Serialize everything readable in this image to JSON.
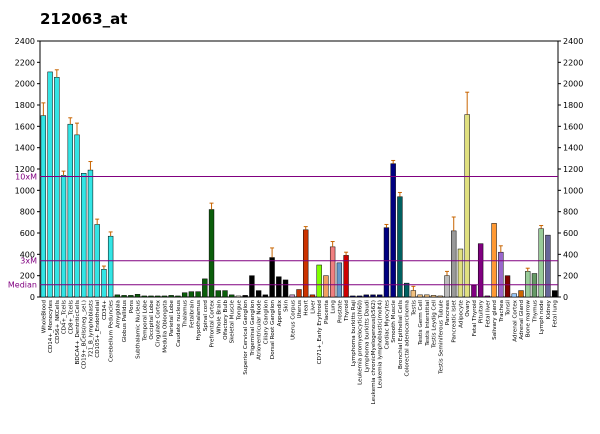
{
  "chart_data": {
    "type": "bar",
    "title": "212063_at",
    "xlabel": "",
    "ylabel": "",
    "left_axis": {
      "ticks": [
        {
          "label": "0",
          "v": 0
        },
        {
          "label": "200",
          "v": 200
        },
        {
          "label": "400",
          "v": 400
        },
        {
          "label": "600",
          "v": 600
        },
        {
          "label": "800",
          "v": 800
        },
        {
          "label": "1000",
          "v": 1000
        },
        {
          "label": "1200",
          "v": 1200
        },
        {
          "label": "1400",
          "v": 1400
        },
        {
          "label": "1600",
          "v": 1600
        },
        {
          "label": "1800",
          "v": 1800
        },
        {
          "label": "2000",
          "v": 2000
        },
        {
          "label": "2200",
          "v": 2200
        },
        {
          "label": "2400",
          "v": 2400
        }
      ]
    },
    "right_axis": {
      "ticks": [
        {
          "label": "0",
          "v": 0
        },
        {
          "label": "200",
          "v": 200
        },
        {
          "label": "400",
          "v": 400
        },
        {
          "label": "600",
          "v": 600
        },
        {
          "label": "800",
          "v": 800
        },
        {
          "label": "1000",
          "v": 1000
        },
        {
          "label": "1200",
          "v": 1200
        },
        {
          "label": "1400",
          "v": 1400
        },
        {
          "label": "1600",
          "v": 1600
        },
        {
          "label": "1800",
          "v": 1800
        },
        {
          "label": "2000",
          "v": 2000
        },
        {
          "label": "2200",
          "v": 2200
        },
        {
          "label": "2400",
          "v": 2400
        }
      ]
    },
    "ylim": [
      0,
      2400
    ],
    "reference_lines": [
      {
        "label": "10xM",
        "v": 1130
      },
      {
        "label": "3xM",
        "v": 340
      },
      {
        "label": "Median",
        "v": 115
      }
    ],
    "colors": {
      "reference": "#800080",
      "error": "#c86400",
      "edge": "#000000"
    },
    "categories": [
      "WholeBlood",
      "CD14+_Monocytes",
      "CD56+_NKCells",
      "CD4+_Tcells",
      "CD8+_Tcells",
      "BDCA4+_DentriticCells",
      "CD19+_BCells(neg._sel.)",
      "721_B_lymphoblasts",
      "CD105+_Endothelial",
      "CD34+",
      "Cerebellum Peduncles",
      "Amygdala",
      "Globus Pallidus",
      "Pons",
      "Subthalamic Nucleus",
      "Temporal Lobe",
      "Occipital Lobe",
      "Cingulate Cortex",
      "Medulla Oblongata",
      "Parietal Lobe",
      "Caudate nucleus",
      "Thalamus",
      "Fetalbrain",
      "Hypothalamus",
      "Spinal cord",
      "Prefrontal Cortex",
      "Whole Brain",
      "Olfactory Bulb",
      "Skeletal Muscle",
      "Tongue",
      "Superior Cervical Ganglion",
      "Trigeminal Ganglion",
      "Atrioventricular Node",
      "Ciliary Ganglion",
      "Dorsal Root Ganglion",
      "Appendix",
      "Skin",
      "Uterus Corpus",
      "Uterus",
      "Heart",
      "Liver",
      "CD71+_Early Erythroid",
      "Placenta",
      "Lung",
      "Prostate",
      "Thyroid",
      "Lymphoma burkitts Raji",
      "Leukemia promyelocytic(hl60)",
      "Lymphoma burkitts Daudi",
      "Leukemia chronicMyelogenous(k562)",
      "Leukemia lymphoblastic(molt4)",
      "Cardiac Myocytes",
      "Smooth Muscle",
      "Bronchial Epithelial Cells",
      "Colorectal adenocarcinoma",
      "Testis",
      "Testis Germ Cell",
      "Testis Interstitial",
      "Testis Leydig Cell",
      "Testis Seminiferous Tubule",
      "Pancreas",
      "Pancreatic Islet",
      "Adipocyte",
      "Ovary",
      "Fetal Thyroid",
      "Pituitary",
      "Fetal liver",
      "Salivary gland",
      "Trachea",
      "Tonsil",
      "Adrenal Cortex",
      "Adrenal Gland",
      "Bone marrow",
      "Thymus",
      "Lymph node",
      "Kidney",
      "Fetal lung"
    ],
    "label_every": 1,
    "values": [
      1700,
      2110,
      2060,
      1140,
      1620,
      1520,
      1160,
      1190,
      680,
      260,
      570,
      20,
      15,
      15,
      25,
      10,
      10,
      10,
      10,
      15,
      10,
      40,
      50,
      50,
      170,
      820,
      60,
      60,
      20,
      10,
      15,
      200,
      60,
      20,
      370,
      190,
      160,
      20,
      70,
      630,
      20,
      300,
      200,
      470,
      320,
      390,
      10,
      10,
      20,
      20,
      20,
      650,
      1250,
      940,
      130,
      60,
      20,
      20,
      15,
      10,
      200,
      620,
      450,
      1710,
      110,
      500,
      10,
      690,
      420,
      200,
      30,
      60,
      240,
      220,
      640,
      580,
      60
    ],
    "errors": [
      120,
      0,
      70,
      40,
      60,
      110,
      0,
      80,
      50,
      30,
      40,
      0,
      0,
      0,
      0,
      0,
      0,
      0,
      0,
      0,
      0,
      0,
      0,
      0,
      0,
      60,
      0,
      0,
      0,
      0,
      0,
      0,
      0,
      0,
      90,
      0,
      0,
      0,
      0,
      30,
      0,
      0,
      0,
      50,
      0,
      30,
      0,
      0,
      0,
      0,
      0,
      30,
      30,
      40,
      0,
      40,
      0,
      0,
      0,
      0,
      40,
      130,
      0,
      210,
      0,
      0,
      0,
      0,
      60,
      0,
      0,
      0,
      30,
      0,
      30,
      0,
      0
    ],
    "bar_colors": [
      "#33e5e5",
      "#33e5e5",
      "#33e5e5",
      "#33e5e5",
      "#33e5e5",
      "#33e5e5",
      "#33e5e5",
      "#33e5e5",
      "#33e5e5",
      "#33e5e5",
      "#33e5e5",
      "#0b5e0b",
      "#0b5e0b",
      "#0b5e0b",
      "#0b5e0b",
      "#0b5e0b",
      "#0b5e0b",
      "#0b5e0b",
      "#0b5e0b",
      "#0b5e0b",
      "#0b5e0b",
      "#0b5e0b",
      "#0b5e0b",
      "#0b5e0b",
      "#0b5e0b",
      "#0b5e0b",
      "#0b5e0b",
      "#0b5e0b",
      "#0b5e0b",
      "#f5f0dc",
      "#000000",
      "#000000",
      "#000000",
      "#000000",
      "#000000",
      "#000000",
      "#000000",
      "#cc99cc",
      "#cc3300",
      "#cc3300",
      "#cc3300",
      "#80ff00",
      "#f0a060",
      "#f08080",
      "#6699cc",
      "#cc0000",
      "#000060",
      "#000060",
      "#000060",
      "#000060",
      "#000060",
      "#000080",
      "#000080",
      "#006060",
      "#006060",
      "#f0c080",
      "#f0c080",
      "#f0c080",
      "#f0c080",
      "#f0c080",
      "#bbbbbb",
      "#999999",
      "#e0e080",
      "#e0e080",
      "#800080",
      "#800080",
      "#800080",
      "#ff9933",
      "#9966cc",
      "#800000",
      "#99ccff",
      "#cc6600",
      "#99cc99",
      "#669966",
      "#99cc99",
      "#666699",
      "#000000"
    ]
  }
}
